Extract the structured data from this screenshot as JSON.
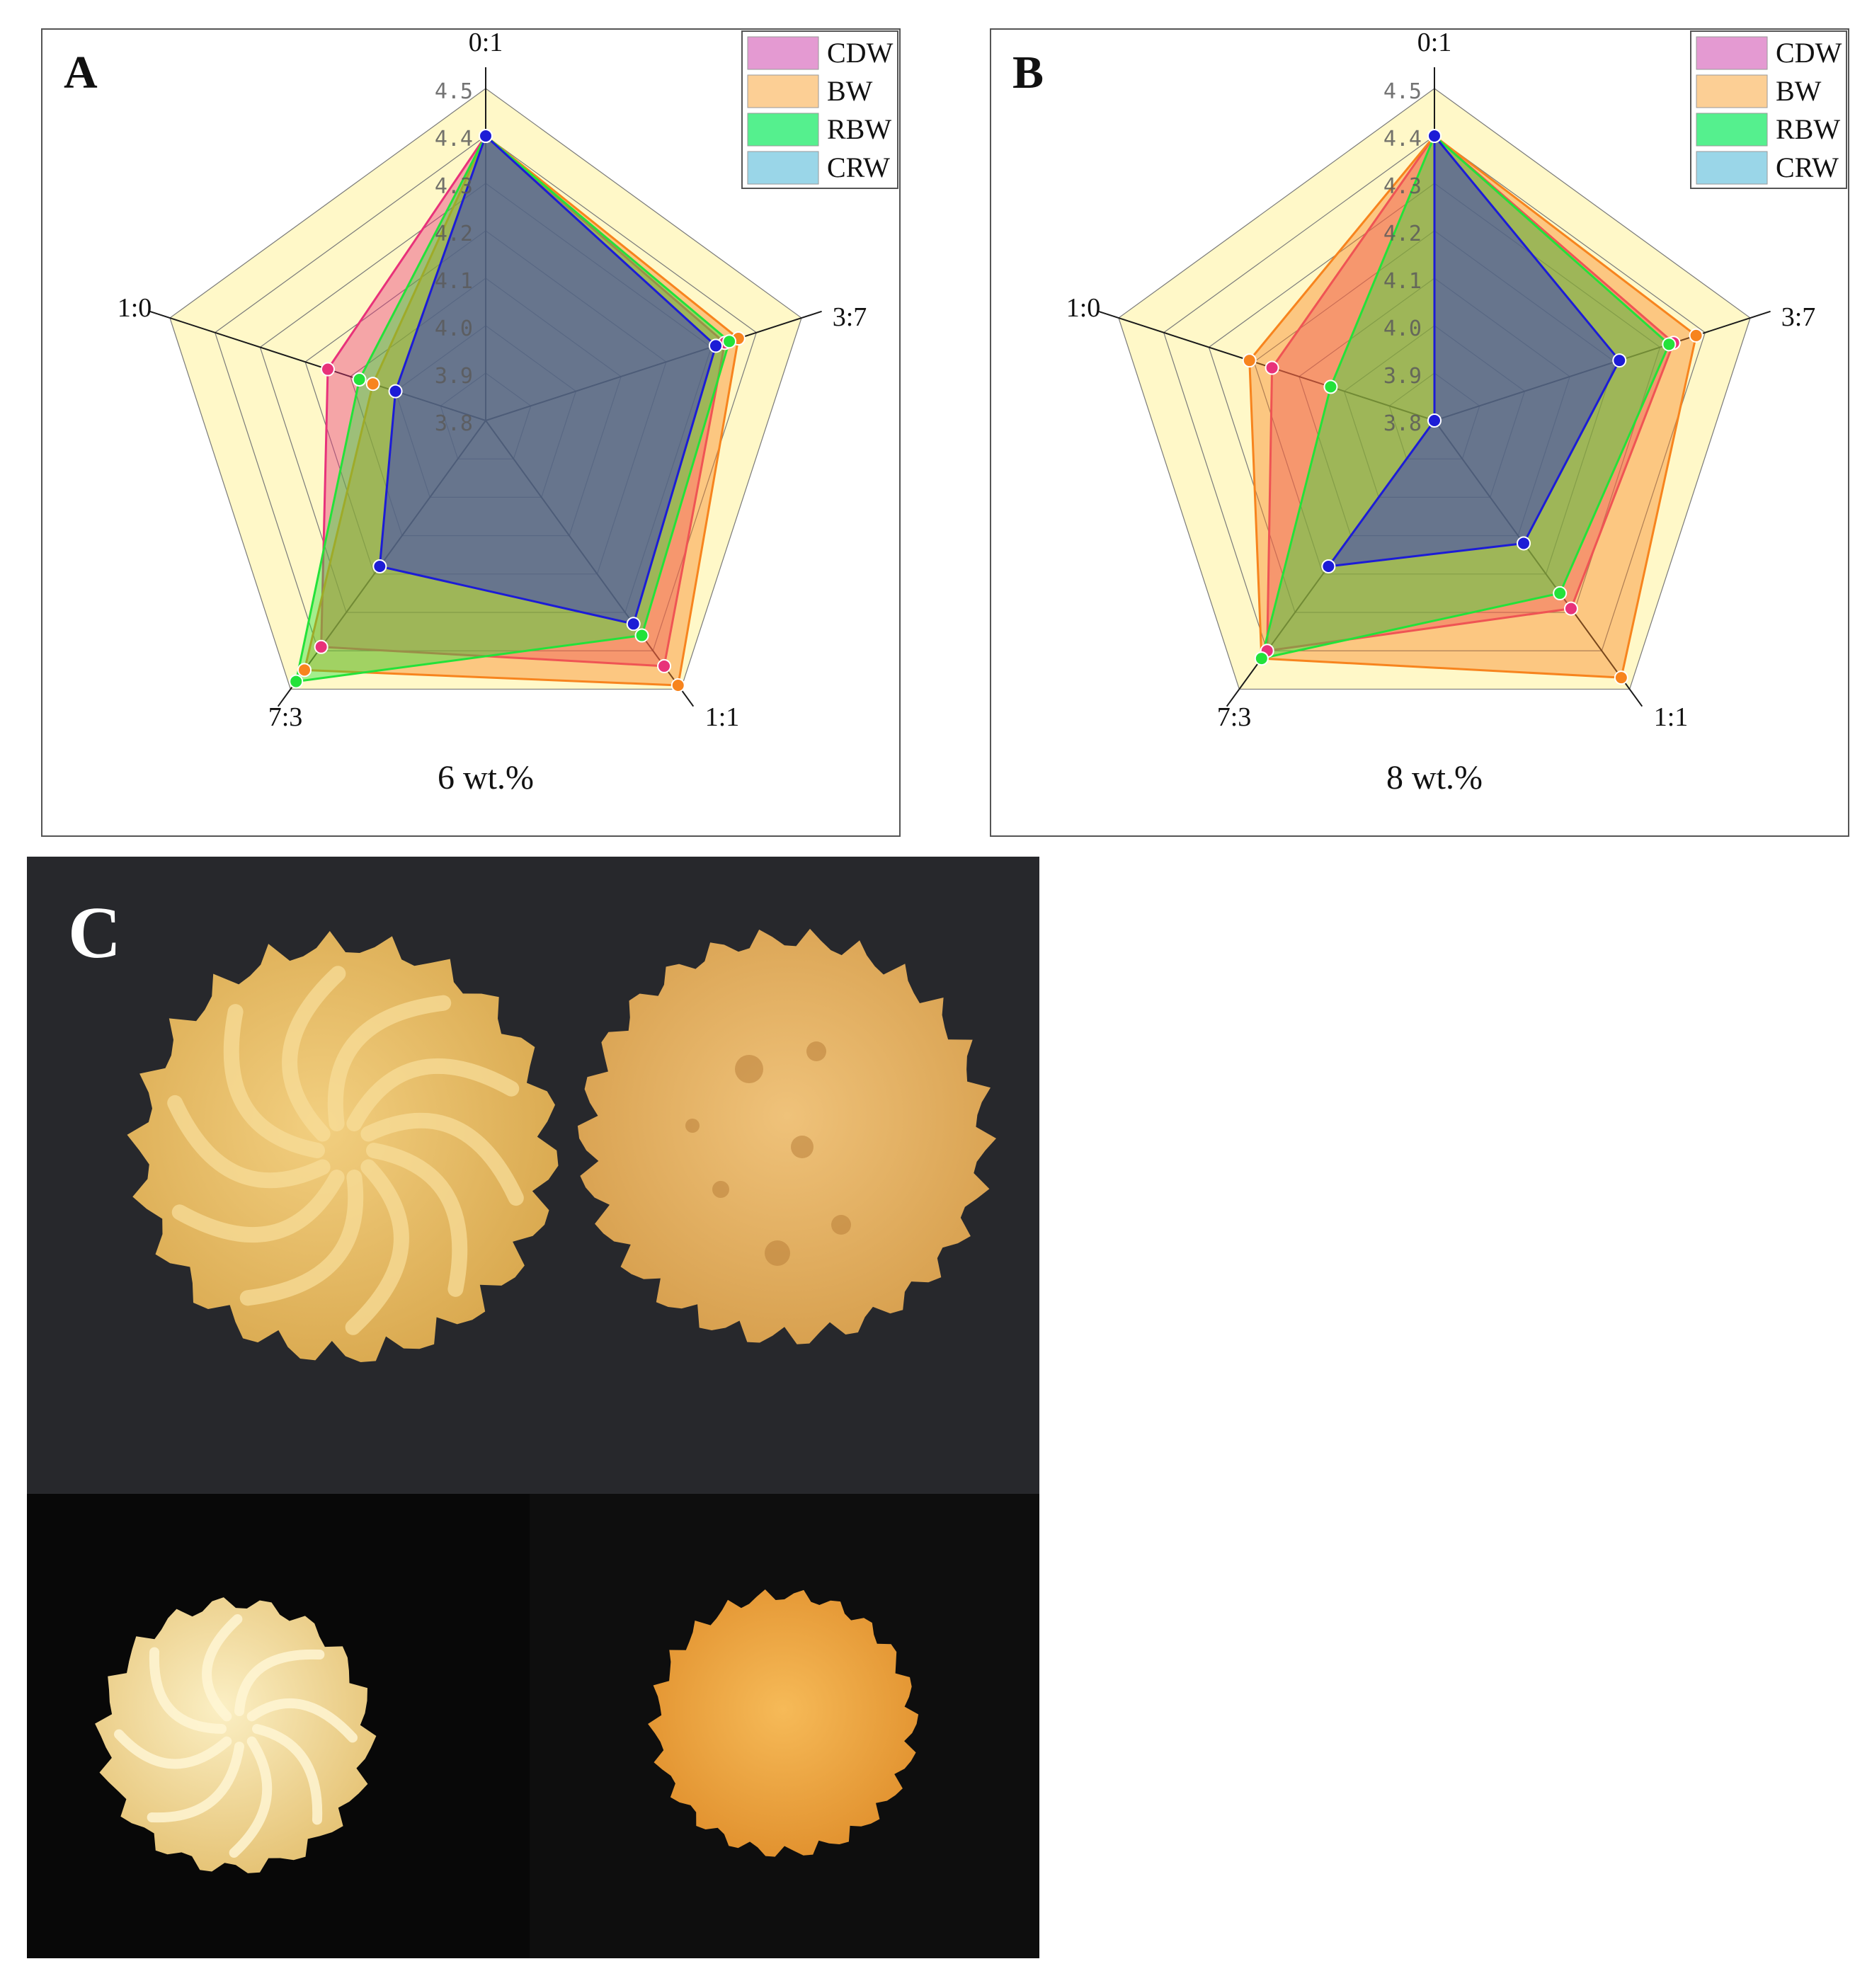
{
  "chart_data": [
    {
      "type": "radar",
      "panel_label": "A",
      "title": "",
      "subtitle": "6 wt.%",
      "axes": [
        "0:1",
        "3:7",
        "1:1",
        "7:3",
        "1:0"
      ],
      "radial_ticks": [
        "3.8",
        "3.9",
        "4.0",
        "4.1",
        "4.2",
        "4.3",
        "4.4",
        "4.5"
      ],
      "rlim": [
        3.8,
        4.5
      ],
      "legend": [
        "CDW",
        "BW",
        "RBW",
        "CRW"
      ],
      "legend_position": "top-right",
      "series": [
        {
          "name": "CDW",
          "values": [
            4.4,
            4.33,
            4.44,
            4.39,
            4.15
          ]
        },
        {
          "name": "BW",
          "values": [
            4.4,
            4.36,
            4.49,
            4.45,
            4.05
          ]
        },
        {
          "name": "RBW",
          "values": [
            4.4,
            4.34,
            4.36,
            4.48,
            4.08
          ]
        },
        {
          "name": "CRW",
          "values": [
            4.4,
            4.31,
            4.33,
            4.18,
            4.0
          ]
        }
      ],
      "colors": {
        "CDW": "#e8327a",
        "BW": "#f7841e",
        "RBW": "#23e23a",
        "CRW": "#1c1cd6"
      },
      "legend_colors": {
        "CDW": "#e49ad2",
        "BW": "#fccf95",
        "RBW": "#55f08e",
        "CRW": "#9ad6e8"
      },
      "background_fill": "#fff8c8"
    },
    {
      "type": "radar",
      "panel_label": "B",
      "title": "",
      "subtitle": "8 wt.%",
      "axes": [
        "0:1",
        "3:7",
        "1:1",
        "7:3",
        "1:0"
      ],
      "radial_ticks": [
        "3.8",
        "3.9",
        "4.0",
        "4.1",
        "4.2",
        "4.3",
        "4.4",
        "4.5"
      ],
      "rlim": [
        3.8,
        4.5
      ],
      "legend": [
        "CDW",
        "BW",
        "RBW",
        "CRW"
      ],
      "legend_position": "top-right",
      "series": [
        {
          "name": "CDW",
          "values": [
            4.4,
            4.33,
            4.29,
            4.4,
            4.16
          ]
        },
        {
          "name": "BW",
          "values": [
            4.4,
            4.38,
            4.47,
            4.42,
            4.21
          ]
        },
        {
          "name": "RBW",
          "values": [
            4.4,
            4.32,
            4.25,
            4.42,
            4.03
          ]
        },
        {
          "name": "CRW",
          "values": [
            4.4,
            4.21,
            4.12,
            4.18,
            3.8
          ]
        }
      ],
      "colors": {
        "CDW": "#e8327a",
        "BW": "#f7841e",
        "RBW": "#23e23a",
        "CRW": "#1c1cd6"
      },
      "legend_colors": {
        "CDW": "#e49ad2",
        "BW": "#fccf95",
        "RBW": "#55f08e",
        "CRW": "#9ad6e8"
      },
      "background_fill": "#fff8c8"
    }
  ],
  "photo": {
    "panel_label": "C",
    "cookie_colors": {
      "top": "#e9c06a",
      "bottom_left": "#f4dfa0",
      "bottom_right": "#f0a944"
    }
  }
}
